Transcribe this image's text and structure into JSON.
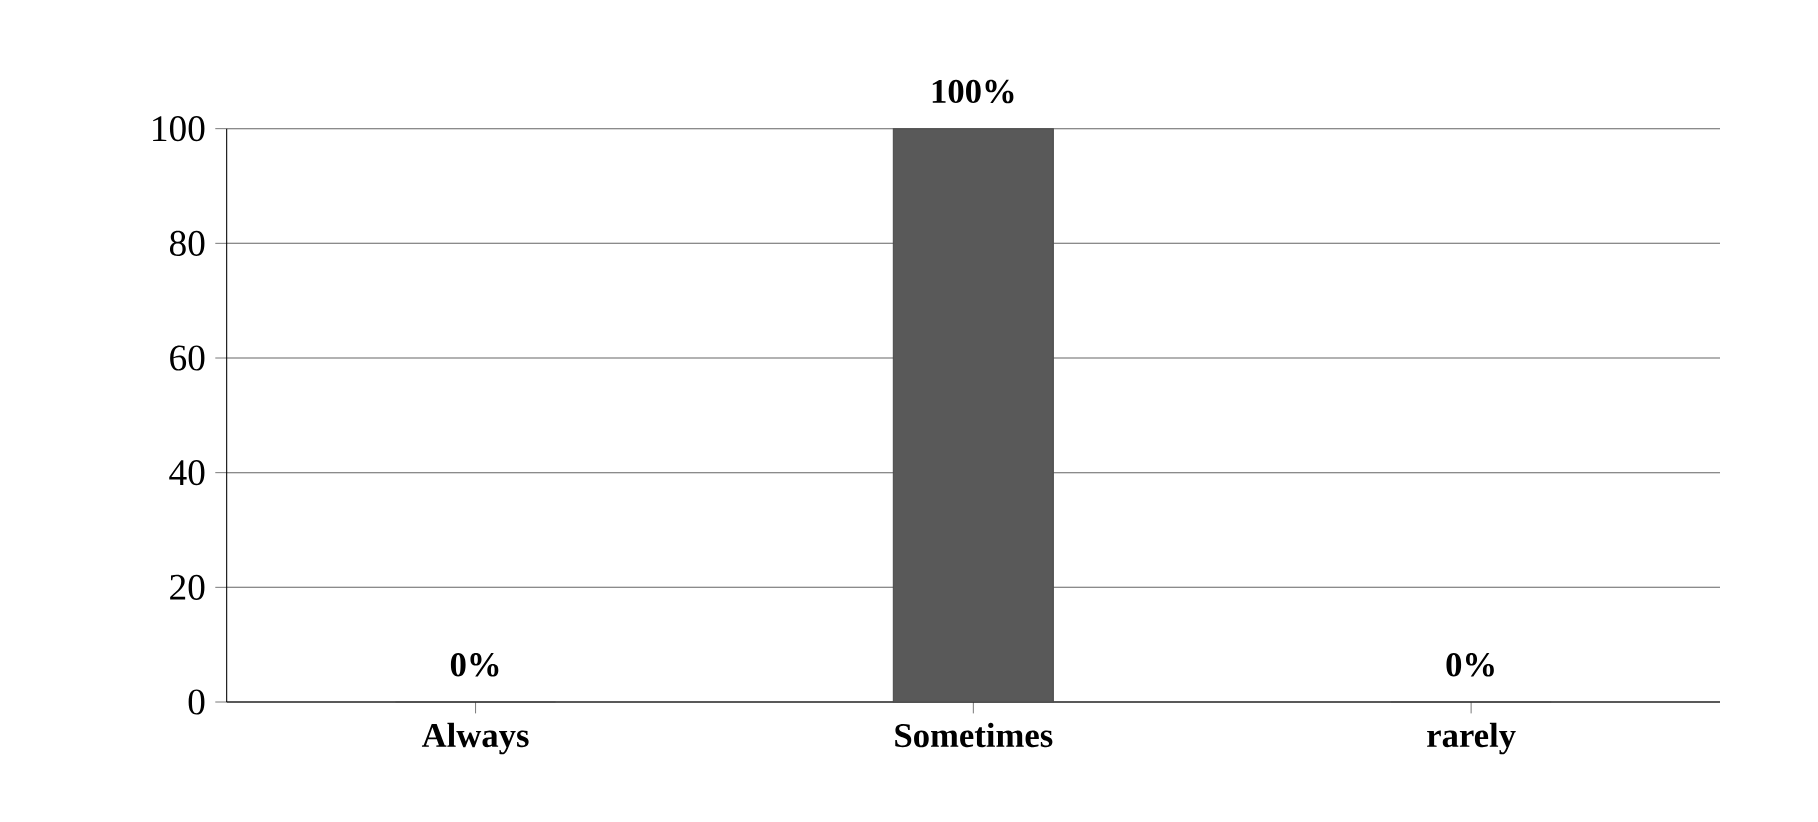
{
  "chart_data": {
    "type": "bar",
    "categories": [
      "Always",
      "Sometimes",
      "rarely"
    ],
    "values": [
      0,
      100,
      0
    ],
    "value_labels": [
      "0%",
      "100%",
      "0%"
    ],
    "colors": [
      "#595959",
      "#595959",
      "#595959"
    ],
    "ylim": [
      0,
      100
    ],
    "yticks": [
      0,
      20,
      40,
      60,
      80,
      100
    ],
    "grid": "y"
  }
}
